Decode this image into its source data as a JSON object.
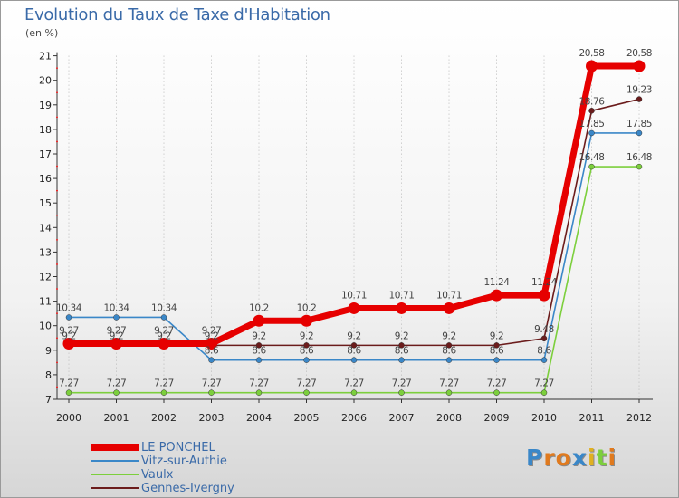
{
  "chart_data": {
    "type": "line",
    "title": "Evolution du Taux de Taxe d'Habitation",
    "subtitle": "(en %)",
    "xlabel": "",
    "ylabel": "",
    "ylim": [
      7,
      21
    ],
    "yticks": [
      "7",
      "8",
      "9",
      "10",
      "11",
      "12",
      "13",
      "14",
      "15",
      "16",
      "17",
      "18",
      "19",
      "20",
      "21"
    ],
    "categories": [
      "2000",
      "2001",
      "2002",
      "2003",
      "2004",
      "2005",
      "2006",
      "2007",
      "2008",
      "2009",
      "2010",
      "2011",
      "2012"
    ],
    "series": [
      {
        "name": "LE PONCHEL",
        "color": "#e60000",
        "values": [
          9.27,
          9.27,
          9.27,
          9.27,
          10.2,
          10.2,
          10.71,
          10.71,
          10.71,
          11.24,
          11.24,
          20.58,
          20.58
        ],
        "labels": [
          "9.27",
          "9.27",
          "9.27",
          "9.27",
          "10.2",
          "10.2",
          "10.71",
          "10.71",
          "10.71",
          "11.24",
          "11.24",
          "20.58",
          "20.58"
        ]
      },
      {
        "name": "Vitz-sur-Authie",
        "color": "#3a87c8",
        "values": [
          10.34,
          10.34,
          10.34,
          8.6,
          8.6,
          8.6,
          8.6,
          8.6,
          8.6,
          8.6,
          8.6,
          17.85,
          17.85
        ],
        "labels": [
          "10.34",
          "10.34",
          "10.34",
          "8.6",
          "8.6",
          "8.6",
          "8.6",
          "8.6",
          "8.6",
          "8.6",
          "8.6",
          "17.85",
          "17.85"
        ]
      },
      {
        "name": "Vaulx",
        "color": "#7ccf3c",
        "values": [
          7.27,
          7.27,
          7.27,
          7.27,
          7.27,
          7.27,
          7.27,
          7.27,
          7.27,
          7.27,
          7.27,
          16.48,
          16.48
        ],
        "labels": [
          "7.27",
          "7.27",
          "7.27",
          "7.27",
          "7.27",
          "7.27",
          "7.27",
          "7.27",
          "7.27",
          "7.27",
          "7.27",
          "16.48",
          "16.48"
        ]
      },
      {
        "name": "Gennes-Ivergny",
        "color": "#6b1c1c",
        "values": [
          9.2,
          9.2,
          9.2,
          9.2,
          9.2,
          9.2,
          9.2,
          9.2,
          9.2,
          9.2,
          9.48,
          18.76,
          19.23
        ],
        "labels": [
          "9.2",
          "9.2",
          "9.2",
          "9.2",
          "9.2",
          "9.2",
          "9.2",
          "9.2",
          "9.2",
          "9.2",
          "9.48",
          "18.76",
          "19.23"
        ]
      }
    ]
  },
  "logo": {
    "letters": [
      "P",
      "r",
      "o",
      "x",
      "i",
      "t",
      "i"
    ],
    "colors": [
      "#3a87c8",
      "#e07a1e",
      "#e07a1e",
      "#3a87c8",
      "#e0b020",
      "#7ccf3c",
      "#e07a1e"
    ]
  }
}
